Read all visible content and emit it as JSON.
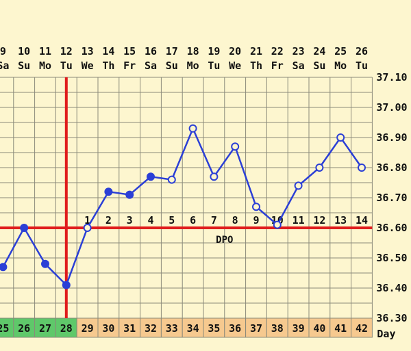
{
  "chart_data": {
    "type": "line",
    "title": "",
    "x_dates": [
      {
        "date": "9",
        "dow": "Sa"
      },
      {
        "date": "10",
        "dow": "Su"
      },
      {
        "date": "11",
        "dow": "Mo"
      },
      {
        "date": "12",
        "dow": "Tu"
      },
      {
        "date": "13",
        "dow": "We"
      },
      {
        "date": "14",
        "dow": "Th"
      },
      {
        "date": "15",
        "dow": "Fr"
      },
      {
        "date": "16",
        "dow": "Sa"
      },
      {
        "date": "17",
        "dow": "Su"
      },
      {
        "date": "18",
        "dow": "Mo"
      },
      {
        "date": "19",
        "dow": "Tu"
      },
      {
        "date": "20",
        "dow": "We"
      },
      {
        "date": "21",
        "dow": "Th"
      },
      {
        "date": "22",
        "dow": "Fr"
      },
      {
        "date": "23",
        "dow": "Sa"
      },
      {
        "date": "24",
        "dow": "Su"
      },
      {
        "date": "25",
        "dow": "Mo"
      },
      {
        "date": "26",
        "dow": "Tu"
      }
    ],
    "cycle_days": [
      25,
      26,
      27,
      28,
      29,
      30,
      31,
      32,
      33,
      34,
      35,
      36,
      37,
      38,
      39,
      40,
      41,
      42
    ],
    "cycle_day_label": "Day",
    "temperatures": [
      36.47,
      36.6,
      36.48,
      36.41,
      36.6,
      36.72,
      36.71,
      36.77,
      36.76,
      36.93,
      36.77,
      36.87,
      36.67,
      36.61,
      36.74,
      36.8,
      36.9,
      36.8
    ],
    "marker_style": [
      "filled",
      "filled",
      "filled",
      "filled",
      "open",
      "filled",
      "filled",
      "filled",
      "open",
      "open",
      "open",
      "open",
      "open",
      "open",
      "open",
      "open",
      "open",
      "open"
    ],
    "y_ticks": [
      "37.10",
      "37.00",
      "36.90",
      "36.80",
      "36.70",
      "36.60",
      "36.50",
      "36.40",
      "36.30"
    ],
    "ylim": [
      36.3,
      37.1
    ],
    "coverline": 36.6,
    "ovulation_cycle_day": 28,
    "dpo_labels": [
      "1",
      "2",
      "3",
      "4",
      "5",
      "6",
      "7",
      "8",
      "9",
      "10",
      "11",
      "12",
      "13",
      "14"
    ],
    "dpo_title": "DPO",
    "colors": {
      "background": "#fdf6cf",
      "grid": "#8a8a7a",
      "line": "#2b3fd6",
      "coverline": "#e01c1c",
      "ovulation": "#e01c1c",
      "day_green": "#5fc86a",
      "day_orange": "#f6c98f"
    }
  }
}
